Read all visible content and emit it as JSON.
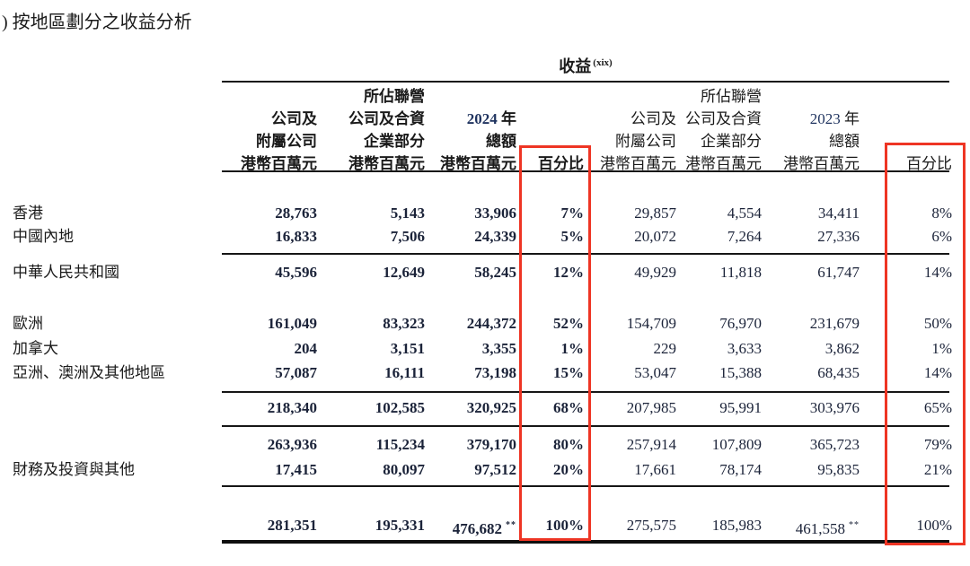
{
  "title": ") 按地區劃分之收益分析",
  "colors": {
    "highlight_box": "#ee3524",
    "rule": "#161616"
  },
  "table": {
    "group_header": {
      "text": "收益",
      "superscript": "(xix)"
    },
    "footnote_marker": "**",
    "header_lines": [
      {
        "c2": "所佔聯營",
        "c6": "所佔聯營"
      },
      {
        "c1": "公司及",
        "c2": "公司及合資",
        "c3_year": "2024",
        "c3_suffix": " 年",
        "c5": "公司及",
        "c6": "公司及合資",
        "c7_year": "2023",
        "c7_suffix": " 年"
      },
      {
        "c1": "附屬公司",
        "c2": "企業部分",
        "c3": "總額",
        "c5": "附屬公司",
        "c6": "企業部分",
        "c7": "總額"
      },
      {
        "c1": "港幣百萬元",
        "c2": "港幣百萬元",
        "c3": "港幣百萬元",
        "c4": "百分比",
        "c5": "港幣百萬元",
        "c6": "港幣百萬元",
        "c7": "港幣百萬元",
        "c8": "百分比"
      }
    ],
    "rows": [
      {
        "label": "香港",
        "c1": "28,763",
        "c2": "5,143",
        "c3": "33,906",
        "c4": "7%",
        "c5": "29,857",
        "c6": "4,554",
        "c7": "34,411",
        "c8": "8%"
      },
      {
        "label": "中國內地",
        "c1": "16,833",
        "c2": "7,506",
        "c3": "24,339",
        "c4": "5%",
        "c5": "20,072",
        "c6": "7,264",
        "c7": "27,336",
        "c8": "6%"
      },
      {
        "label": "中華人民共和國",
        "c1": "45,596",
        "c2": "12,649",
        "c3": "58,245",
        "c4": "12%",
        "c5": "49,929",
        "c6": "11,818",
        "c7": "61,747",
        "c8": "14%"
      },
      {
        "label": "歐洲",
        "c1": "161,049",
        "c2": "83,323",
        "c3": "244,372",
        "c4": "52%",
        "c5": "154,709",
        "c6": "76,970",
        "c7": "231,679",
        "c8": "50%"
      },
      {
        "label": "加拿大",
        "c1": "204",
        "c2": "3,151",
        "c3": "3,355",
        "c4": "1%",
        "c5": "229",
        "c6": "3,633",
        "c7": "3,862",
        "c8": "1%"
      },
      {
        "label": "亞洲、澳洲及其他地區",
        "c1": "57,087",
        "c2": "16,111",
        "c3": "73,198",
        "c4": "15%",
        "c5": "53,047",
        "c6": "15,388",
        "c7": "68,435",
        "c8": "14%"
      },
      {
        "label": "",
        "c1": "218,340",
        "c2": "102,585",
        "c3": "320,925",
        "c4": "68%",
        "c5": "207,985",
        "c6": "95,991",
        "c7": "303,976",
        "c8": "65%"
      },
      {
        "label": "",
        "c1": "263,936",
        "c2": "115,234",
        "c3": "379,170",
        "c4": "80%",
        "c5": "257,914",
        "c6": "107,809",
        "c7": "365,723",
        "c8": "79%"
      },
      {
        "label": "財務及投資與其他",
        "c1": "17,415",
        "c2": "80,097",
        "c3": "97,512",
        "c4": "20%",
        "c5": "17,661",
        "c6": "78,174",
        "c7": "95,835",
        "c8": "21%"
      },
      {
        "label": "",
        "c1": "281,351",
        "c2": "195,331",
        "c3": "476,682",
        "c3_sup": "**",
        "c4": "100%",
        "c5": "275,575",
        "c6": "185,983",
        "c7": "461,558",
        "c7_sup": "**",
        "c8": "100%"
      }
    ]
  }
}
